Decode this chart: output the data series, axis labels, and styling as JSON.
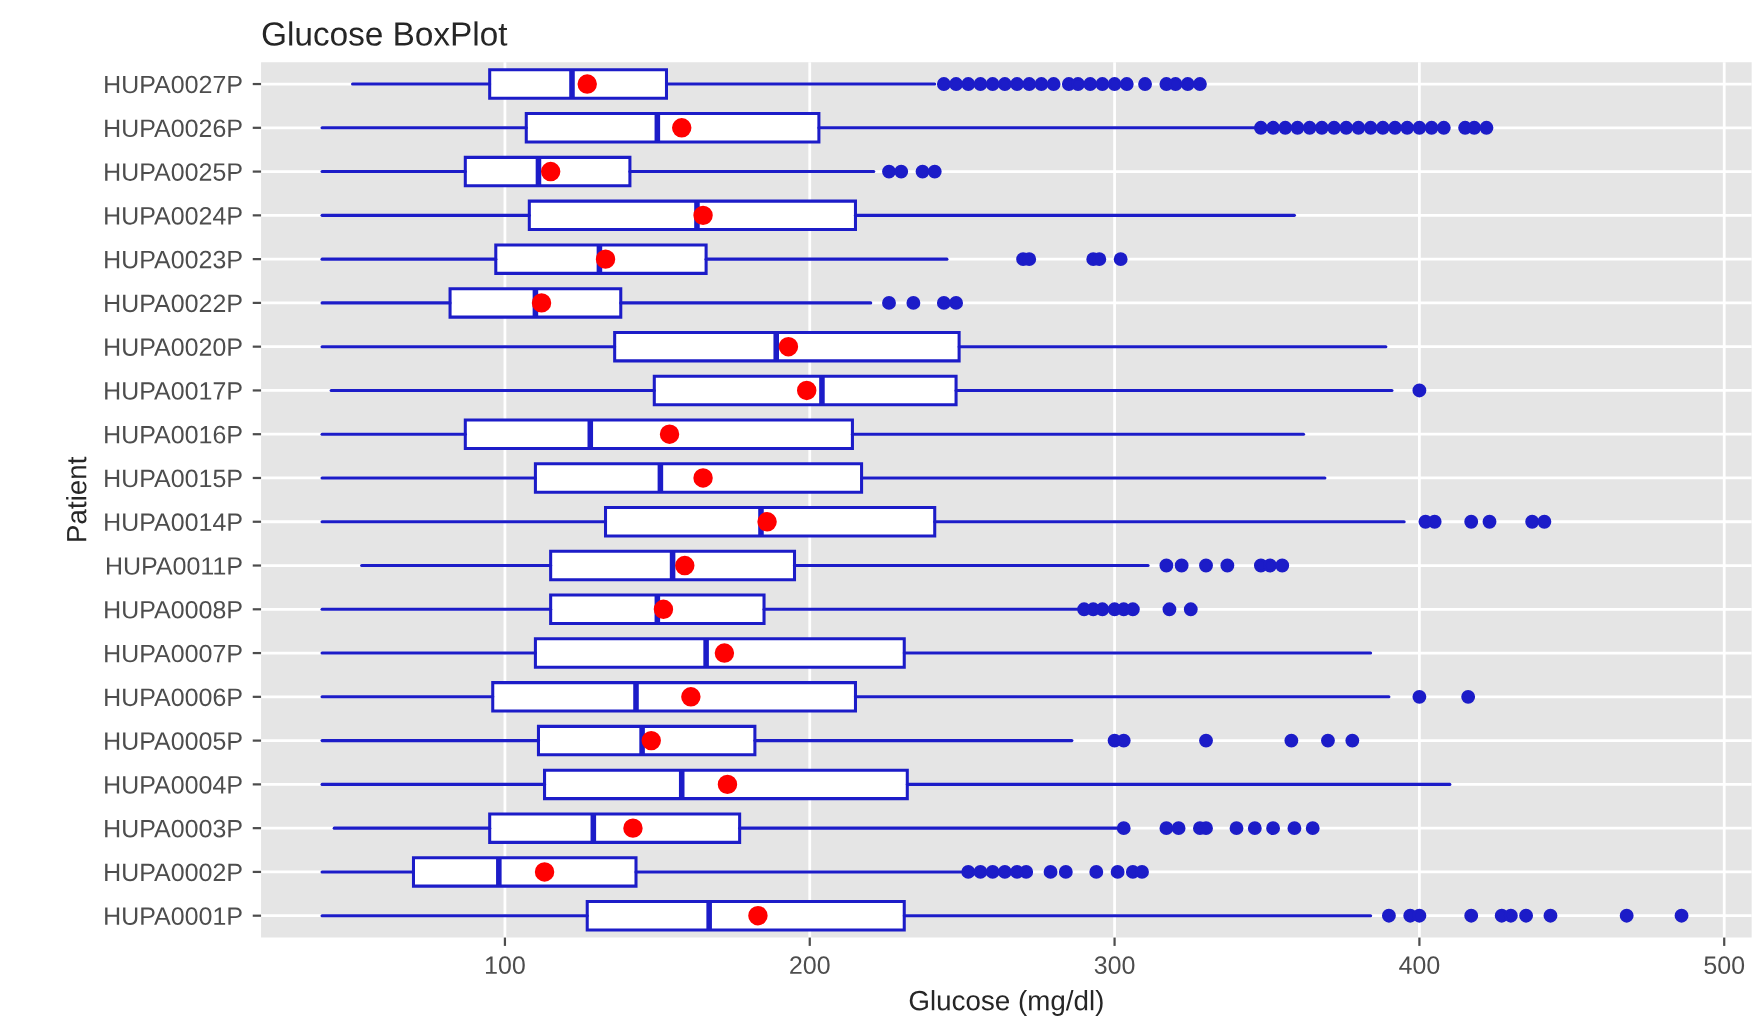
{
  "chart_data": {
    "type": "box",
    "orientation": "horizontal",
    "title": "Glucose BoxPlot",
    "xlabel": "Glucose (mg/dl)",
    "ylabel": "Patient",
    "categories": [
      "HUPA0027P",
      "HUPA0026P",
      "HUPA0025P",
      "HUPA0024P",
      "HUPA0023P",
      "HUPA0022P",
      "HUPA0020P",
      "HUPA0017P",
      "HUPA0016P",
      "HUPA0015P",
      "HUPA0014P",
      "HUPA0011P",
      "HUPA0008P",
      "HUPA0007P",
      "HUPA0006P",
      "HUPA0005P",
      "HUPA0004P",
      "HUPA0003P",
      "HUPA0002P",
      "HUPA0001P"
    ],
    "xlim": [
      20,
      509
    ],
    "xticks": [
      100,
      200,
      300,
      400,
      500
    ],
    "grid": true,
    "series": [
      {
        "color": "#1c1cc8",
        "boxes": [
          {
            "low": 50,
            "q1": 95,
            "median": 122,
            "q3": 153,
            "high": 241,
            "mean": 127,
            "outliers": [
              244,
              248,
              252,
              256,
              260,
              264,
              268,
              272,
              276,
              280,
              285,
              288,
              292,
              296,
              300,
              304,
              310,
              317,
              320,
              324,
              328
            ]
          },
          {
            "low": 40,
            "q1": 107,
            "median": 150,
            "q3": 203,
            "high": 346,
            "mean": 158,
            "outliers": [
              348,
              352,
              356,
              360,
              364,
              368,
              372,
              376,
              380,
              384,
              388,
              392,
              396,
              400,
              404,
              408,
              415,
              418,
              422
            ]
          },
          {
            "low": 40,
            "q1": 87,
            "median": 111,
            "q3": 141,
            "high": 221,
            "mean": 115,
            "outliers": [
              226,
              230,
              237,
              241
            ]
          },
          {
            "low": 40,
            "q1": 108,
            "median": 163,
            "q3": 215,
            "high": 359,
            "mean": 165
          },
          {
            "low": 40,
            "q1": 97,
            "median": 131,
            "q3": 166,
            "high": 245,
            "mean": 133,
            "outliers": [
              270,
              272,
              293,
              295,
              302
            ]
          },
          {
            "low": 40,
            "q1": 82,
            "median": 110,
            "q3": 138,
            "high": 220,
            "mean": 112,
            "outliers": [
              226,
              234,
              244,
              248
            ]
          },
          {
            "low": 40,
            "q1": 136,
            "median": 189,
            "q3": 249,
            "high": 389,
            "mean": 193
          },
          {
            "low": 43,
            "q1": 149,
            "median": 204,
            "q3": 248,
            "high": 391,
            "mean": 199,
            "outliers": [
              400
            ]
          },
          {
            "low": 40,
            "q1": 87,
            "median": 128,
            "q3": 214,
            "high": 362,
            "mean": 154
          },
          {
            "low": 40,
            "q1": 110,
            "median": 151,
            "q3": 217,
            "high": 369,
            "mean": 165
          },
          {
            "low": 40,
            "q1": 133,
            "median": 184,
            "q3": 241,
            "high": 395,
            "mean": 186,
            "outliers": [
              402,
              405,
              417,
              423,
              437,
              441
            ]
          },
          {
            "low": 53,
            "q1": 115,
            "median": 155,
            "q3": 195,
            "high": 311,
            "mean": 159,
            "outliers": [
              317,
              322,
              330,
              337,
              348,
              351,
              355
            ]
          },
          {
            "low": 40,
            "q1": 115,
            "median": 150,
            "q3": 185,
            "high": 288,
            "mean": 152,
            "outliers": [
              290,
              293,
              296,
              300,
              303,
              306,
              318,
              325
            ]
          },
          {
            "low": 40,
            "q1": 110,
            "median": 166,
            "q3": 231,
            "high": 384,
            "mean": 172
          },
          {
            "low": 40,
            "q1": 96,
            "median": 143,
            "q3": 215,
            "high": 390,
            "mean": 161,
            "outliers": [
              400,
              416
            ]
          },
          {
            "low": 40,
            "q1": 111,
            "median": 145,
            "q3": 182,
            "high": 286,
            "mean": 148,
            "outliers": [
              300,
              303,
              330,
              358,
              370,
              378
            ]
          },
          {
            "low": 40,
            "q1": 113,
            "median": 158,
            "q3": 232,
            "high": 410,
            "mean": 173
          },
          {
            "low": 44,
            "q1": 95,
            "median": 129,
            "q3": 177,
            "high": 301,
            "mean": 142,
            "outliers": [
              303,
              317,
              321,
              328,
              330,
              340,
              346,
              352,
              359,
              365
            ]
          },
          {
            "low": 40,
            "q1": 70,
            "median": 98,
            "q3": 143,
            "high": 250,
            "mean": 113,
            "outliers": [
              252,
              256,
              260,
              264,
              268,
              271,
              279,
              284,
              294,
              301,
              306,
              309
            ]
          },
          {
            "low": 40,
            "q1": 127,
            "median": 167,
            "q3": 231,
            "high": 384,
            "mean": 183,
            "outliers": [
              390,
              397,
              400,
              417,
              427,
              430,
              435,
              443,
              468,
              486
            ]
          }
        ]
      }
    ]
  }
}
